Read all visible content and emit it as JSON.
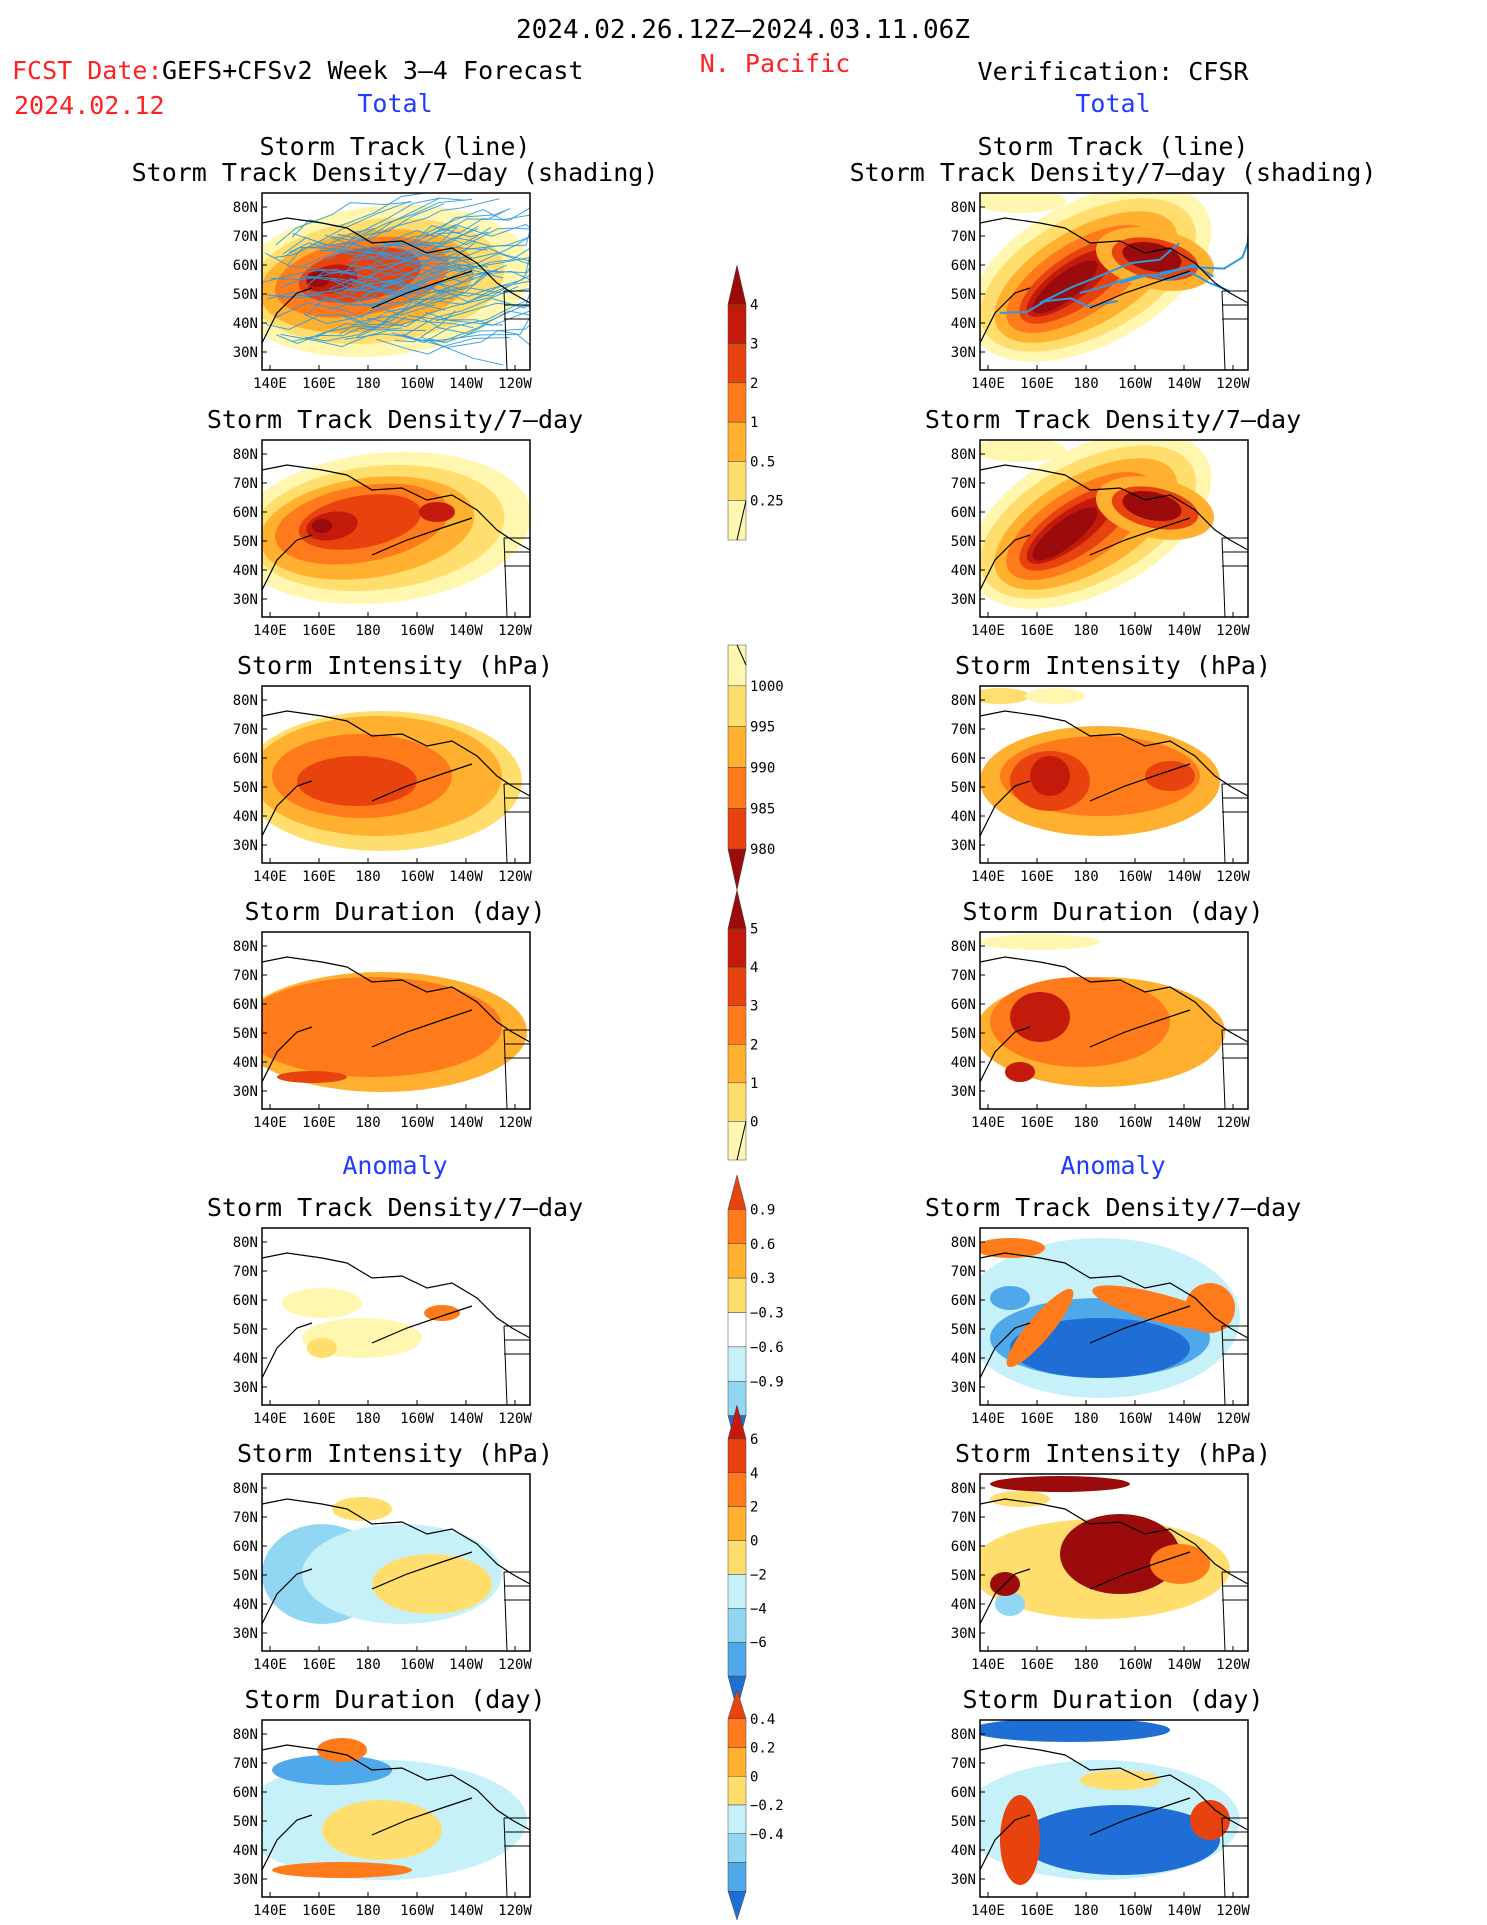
{
  "header": {
    "period": "2024.02.26.12Z–2024.03.11.06Z",
    "fcst_label": "FCST Date:",
    "fcst_date": "2024.02.12",
    "model": "GEFS+CFSv2 Week 3–4 Forecast",
    "region": "N. Pacific",
    "verification": "Verification: CFSR"
  },
  "columns": {
    "left": {
      "total_label": "Total",
      "anomaly_label": "Anomaly"
    },
    "right": {
      "total_label": "Total",
      "anomaly_label": "Anomaly"
    }
  },
  "panel_titles": {
    "track_line": "Storm Track (line)",
    "track_shading": "Storm Track Density/7–day (shading)",
    "density": "Storm Track Density/7–day",
    "intensity": "Storm Intensity (hPa)",
    "duration": "Storm Duration (day)"
  },
  "axes": {
    "lat_labels": [
      "80N",
      "70N",
      "60N",
      "50N",
      "40N",
      "30N"
    ],
    "lon_labels": [
      "140E",
      "160E",
      "180",
      "160W",
      "140W",
      "120W"
    ]
  },
  "colors": {
    "warm": [
      "#fff7b0",
      "#ffde6e",
      "#ffb02e",
      "#ff7a1a",
      "#e8420e",
      "#c41a0c",
      "#9b0b0b"
    ],
    "cool": [
      "#c7f1f9",
      "#91d7f4",
      "#4ea8ea",
      "#1f6ed6"
    ],
    "track_line": "#2f9ae0",
    "title_red": "#ff2020",
    "label_blue": "#1f3cff"
  },
  "colorbars": [
    {
      "name": "track-density",
      "labels": [
        "4",
        "3",
        "2",
        "1",
        "0.5",
        "0.25"
      ]
    },
    {
      "name": "intensity",
      "labels": [
        "1000",
        "995",
        "990",
        "985",
        "980"
      ]
    },
    {
      "name": "duration",
      "labels": [
        "5",
        "4",
        "3",
        "2",
        "1",
        "0"
      ]
    },
    {
      "name": "density-anomaly",
      "labels": [
        "0.9",
        "0.6",
        "0.3",
        "−0.3",
        "−0.6",
        "−0.9"
      ]
    },
    {
      "name": "intensity-anomaly",
      "labels": [
        "6",
        "4",
        "2",
        "0",
        "−2",
        "−4",
        "−6"
      ]
    },
    {
      "name": "duration-anomaly",
      "labels": [
        "0.4",
        "0.2",
        "0",
        "−0.2",
        "−0.4"
      ]
    }
  ],
  "chart_data": [
    {
      "type": "heatmap",
      "title": "Storm Track (line) / Storm Track Density/7–day (shading)",
      "column": "GEFS+CFSv2 Week 3–4 Forecast",
      "xlim": [
        "140E",
        "110W"
      ],
      "ylim": [
        "25N",
        "85N"
      ],
      "peak_value": 3.5,
      "peak_location": [
        "160E–180",
        "45N–60N"
      ]
    },
    {
      "type": "heatmap",
      "title": "Storm Track (line) / Storm Track Density/7–day (shading)",
      "column": "Verification: CFSR",
      "xlim": [
        "140E",
        "110W"
      ],
      "ylim": [
        "25N",
        "85N"
      ],
      "peak_value": 4.5,
      "peak_location": [
        "150E–180, 140W",
        "40N–60N"
      ]
    },
    {
      "type": "heatmap",
      "title": "Storm Track Density/7–day",
      "column": "GEFS+CFSv2 Week 3–4 Forecast",
      "xlim": [
        "140E",
        "110W"
      ],
      "ylim": [
        "25N",
        "85N"
      ],
      "peak_value": 3.5
    },
    {
      "type": "heatmap",
      "title": "Storm Track Density/7–day",
      "column": "Verification: CFSR",
      "xlim": [
        "140E",
        "110W"
      ],
      "ylim": [
        "25N",
        "85N"
      ],
      "peak_value": 4.5
    },
    {
      "type": "heatmap",
      "title": "Storm Intensity (hPa)",
      "column": "GEFS+CFSv2 Week 3–4 Forecast",
      "xlim": [
        "140E",
        "110W"
      ],
      "ylim": [
        "25N",
        "85N"
      ],
      "min_value": 985
    },
    {
      "type": "heatmap",
      "title": "Storm Intensity (hPa)",
      "column": "Verification: CFSR",
      "xlim": [
        "140E",
        "110W"
      ],
      "ylim": [
        "25N",
        "85N"
      ],
      "min_value": 985
    },
    {
      "type": "heatmap",
      "title": "Storm Duration (day)",
      "column": "GEFS+CFSv2 Week 3–4 Forecast",
      "xlim": [
        "140E",
        "110W"
      ],
      "ylim": [
        "25N",
        "85N"
      ],
      "typical_value": 3
    },
    {
      "type": "heatmap",
      "title": "Storm Duration (day)",
      "column": "Verification: CFSR",
      "xlim": [
        "140E",
        "110W"
      ],
      "ylim": [
        "25N",
        "85N"
      ],
      "max_value": 5
    },
    {
      "type": "heatmap",
      "title": "Anomaly Storm Track Density/7–day",
      "column": "GEFS+CFSv2 Week 3–4 Forecast",
      "xlim": [
        "140E",
        "110W"
      ],
      "ylim": [
        "25N",
        "85N"
      ],
      "range": [
        0.3,
        0.6
      ]
    },
    {
      "type": "heatmap",
      "title": "Anomaly Storm Track Density/7–day",
      "column": "Verification: CFSR",
      "xlim": [
        "140E",
        "110W"
      ],
      "ylim": [
        "25N",
        "85N"
      ],
      "range": [
        -0.9,
        0.9
      ]
    },
    {
      "type": "heatmap",
      "title": "Anomaly Storm Intensity (hPa)",
      "column": "GEFS+CFSv2 Week 3–4 Forecast",
      "xlim": [
        "140E",
        "110W"
      ],
      "ylim": [
        "25N",
        "85N"
      ],
      "range": [
        -4,
        4
      ]
    },
    {
      "type": "heatmap",
      "title": "Anomaly Storm Intensity (hPa)",
      "column": "Verification: CFSR",
      "xlim": [
        "140E",
        "110W"
      ],
      "ylim": [
        "25N",
        "85N"
      ],
      "range": [
        -4,
        6
      ]
    },
    {
      "type": "heatmap",
      "title": "Anomaly Storm Duration (day)",
      "column": "GEFS+CFSv2 Week 3–4 Forecast",
      "xlim": [
        "140E",
        "110W"
      ],
      "ylim": [
        "25N",
        "85N"
      ],
      "range": [
        -0.4,
        0.4
      ]
    },
    {
      "type": "heatmap",
      "title": "Anomaly Storm Duration (day)",
      "column": "Verification: CFSR",
      "xlim": [
        "140E",
        "110W"
      ],
      "ylim": [
        "25N",
        "85N"
      ],
      "range": [
        -0.4,
        0.4
      ]
    }
  ]
}
